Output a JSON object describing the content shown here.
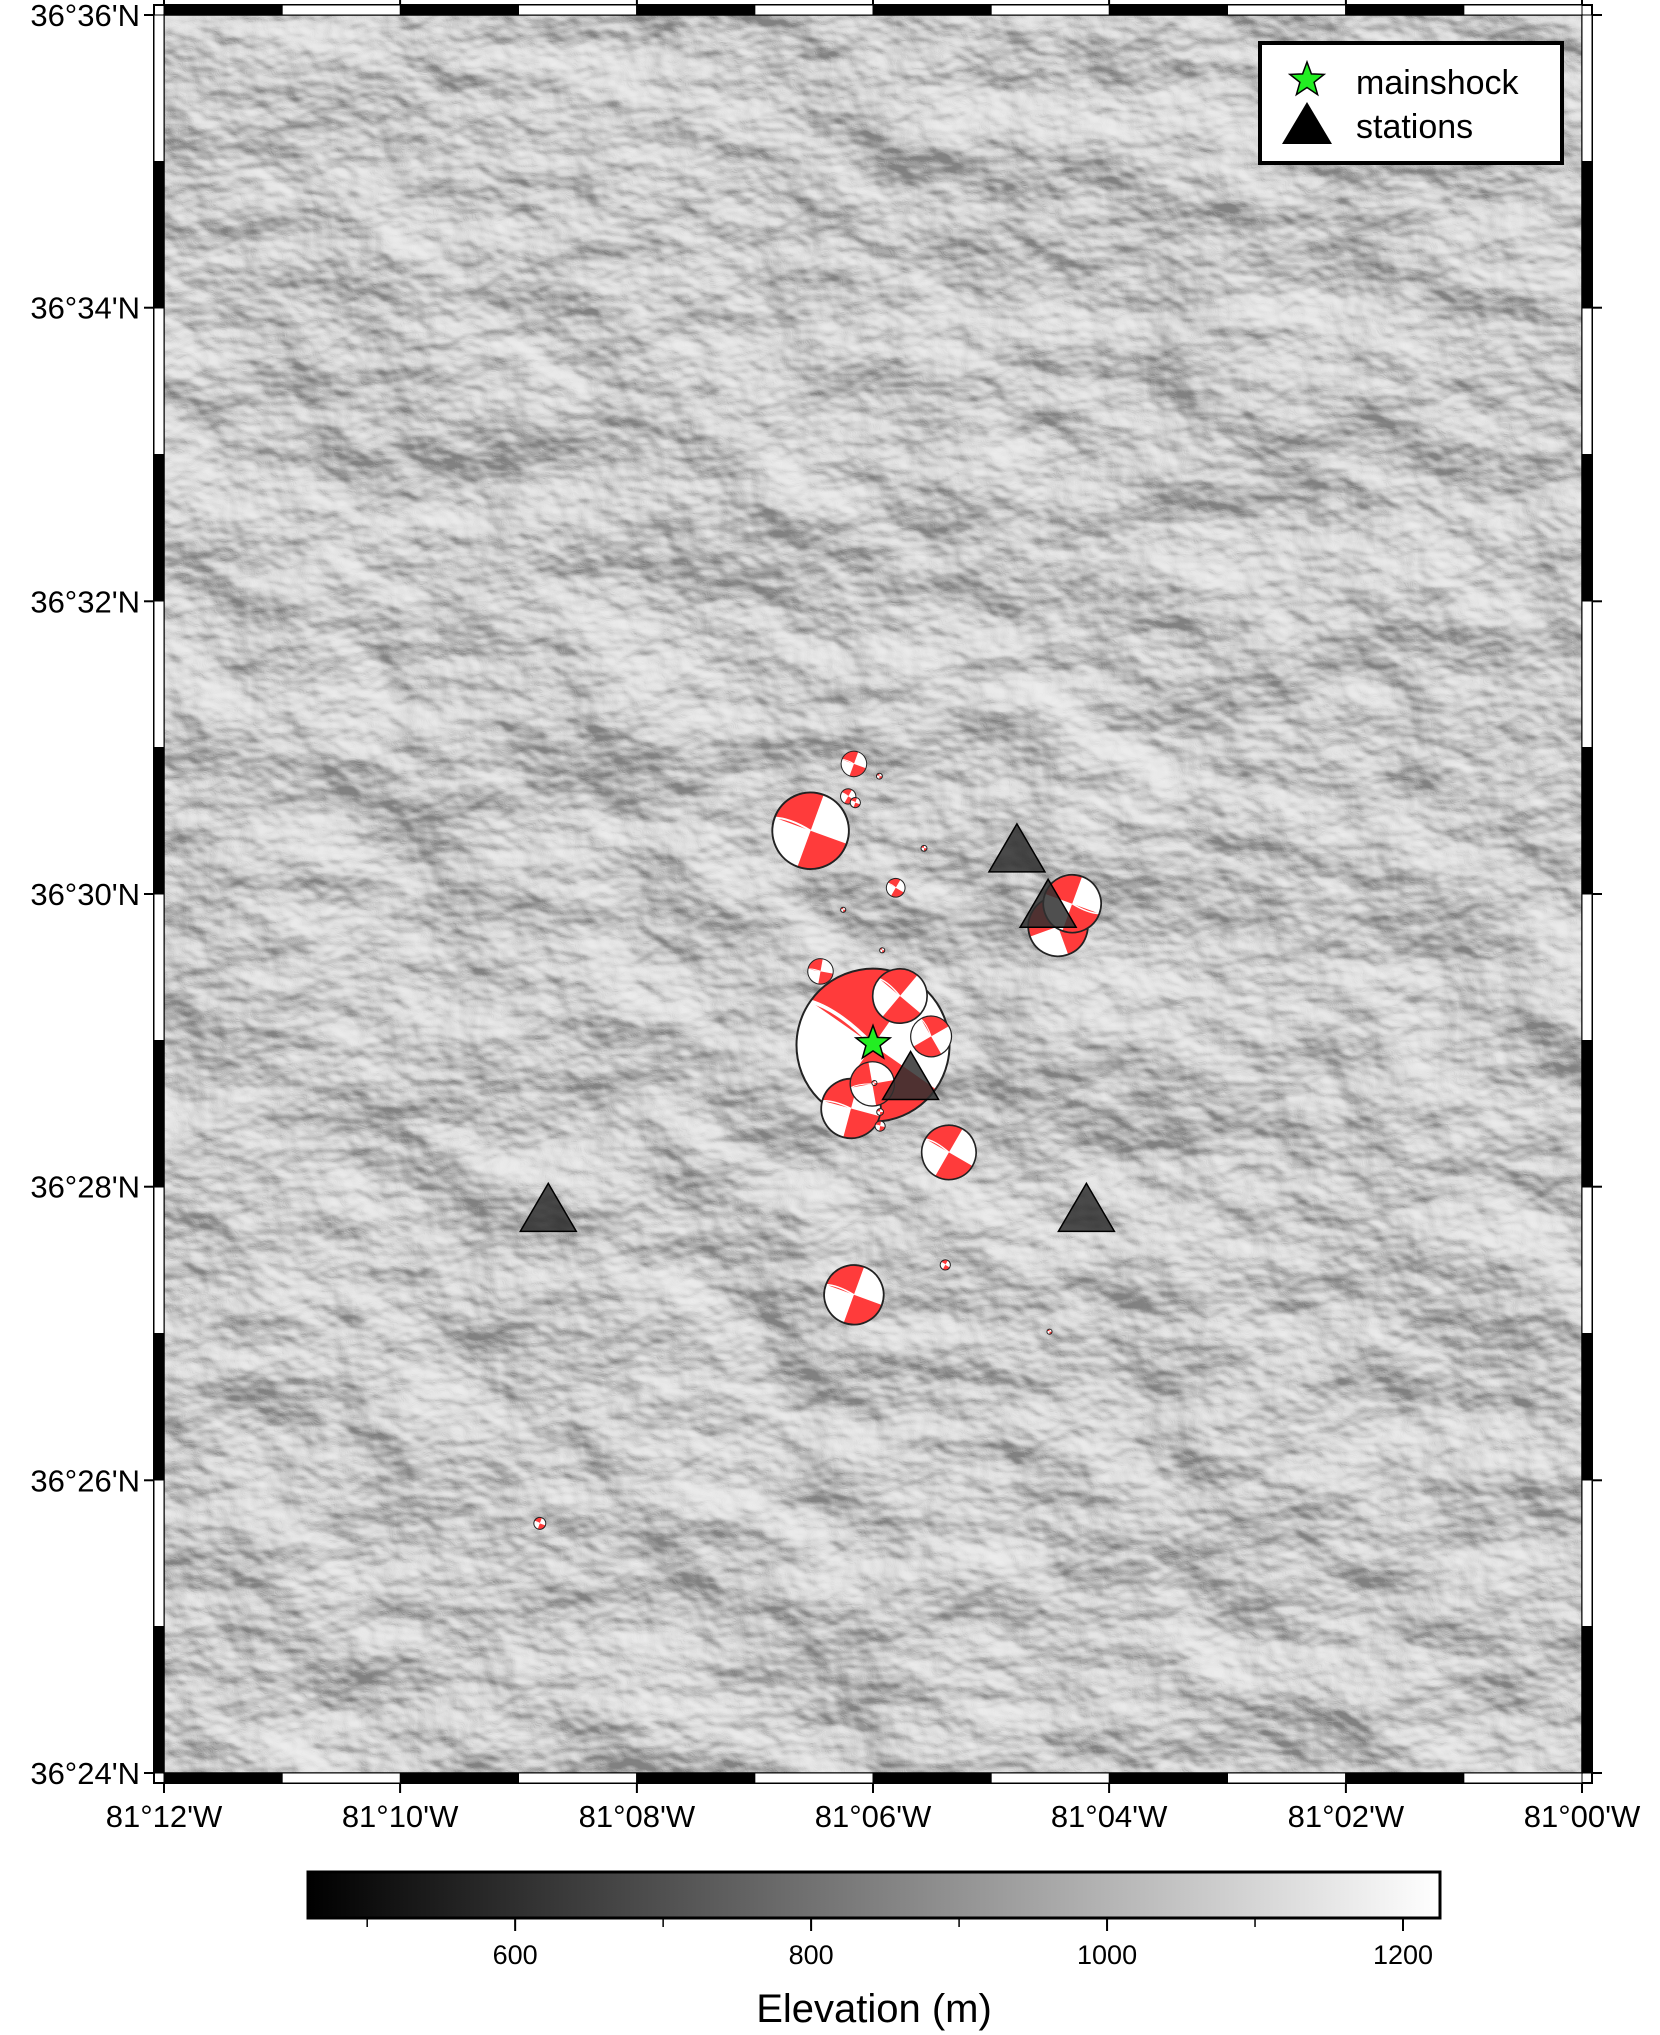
{
  "map": {
    "lon_range": [
      -81.2,
      -81.0
    ],
    "lat_range": [
      36.4,
      36.6
    ],
    "colors": {
      "beach_fill": "#ff3b3b",
      "beach_white": "#ffffff",
      "station": "#303030",
      "mainshock": "#22ee22"
    }
  },
  "axes": {
    "lat_labels": [
      "36°36'N",
      "36°34'N",
      "36°32'N",
      "36°30'N",
      "36°28'N",
      "36°26'N",
      "36°24'N"
    ],
    "lat_values": [
      36.6,
      36.5667,
      36.5333,
      36.5,
      36.4667,
      36.4333,
      36.4
    ],
    "lon_labels": [
      "81°12'W",
      "81°10'W",
      "81°08'W",
      "81°06'W",
      "81°04'W",
      "81°02'W",
      "81°00'W"
    ],
    "lon_values": [
      -81.2,
      -81.1667,
      -81.1333,
      -81.1,
      -81.0667,
      -81.0333,
      -81.0
    ]
  },
  "legend": {
    "mainshock_label": "mainshock",
    "stations_label": "stations"
  },
  "colorbar": {
    "title": "Elevation (m)",
    "range": [
      460,
      1225
    ],
    "tick_values": [
      600,
      800,
      1000,
      1200
    ],
    "tick_labels": [
      "600",
      "800",
      "1000",
      "1200"
    ]
  },
  "mainshock": {
    "lon": -81.1,
    "lat": 36.483
  },
  "stations": [
    {
      "lon": -81.0797,
      "lat": 36.5047
    },
    {
      "lon": -81.0753,
      "lat": 36.4984
    },
    {
      "lon": -81.0947,
      "lat": 36.4788
    },
    {
      "lon": -81.1458,
      "lat": 36.4638
    },
    {
      "lon": -81.0699,
      "lat": 36.4638
    }
  ],
  "events": [
    {
      "lon": -81.1,
      "lat": 36.4828,
      "size": 9,
      "rot": 35
    },
    {
      "lon": -81.1088,
      "lat": 36.5072,
      "size": 4.5,
      "rot": 20
    },
    {
      "lon": -81.0719,
      "lat": 36.4989,
      "size": 3.4,
      "rot": 200
    },
    {
      "lon": -81.0739,
      "lat": 36.4963,
      "size": 3.5,
      "rot": 160
    },
    {
      "lon": -81.0962,
      "lat": 36.4884,
      "size": 3.2,
      "rot": 40
    },
    {
      "lon": -81.0918,
      "lat": 36.4838,
      "size": 2.4,
      "rot": 60
    },
    {
      "lon": -81.1031,
      "lat": 36.4756,
      "size": 3.5,
      "rot": 15
    },
    {
      "lon": -81.1001,
      "lat": 36.4784,
      "size": 2.6,
      "rot": 350
    },
    {
      "lon": -81.0893,
      "lat": 36.4706,
      "size": 3.2,
      "rot": 30
    },
    {
      "lon": -81.1027,
      "lat": 36.4544,
      "size": 3.5,
      "rot": 20
    },
    {
      "lon": -81.1074,
      "lat": 36.4912,
      "size": 1.5,
      "rot": 10
    },
    {
      "lon": -81.1027,
      "lat": 36.5148,
      "size": 1.5,
      "rot": 20
    },
    {
      "lon": -81.1035,
      "lat": 36.5111,
      "size": 0.9,
      "rot": 30
    },
    {
      "lon": -81.1025,
      "lat": 36.5104,
      "size": 0.6,
      "rot": 20
    },
    {
      "lon": -81.0991,
      "lat": 36.5134,
      "size": 0.35,
      "rot": 0
    },
    {
      "lon": -81.0928,
      "lat": 36.5052,
      "size": 0.35,
      "rot": 0
    },
    {
      "lon": -81.0968,
      "lat": 36.5007,
      "size": 1.1,
      "rot": 30
    },
    {
      "lon": -81.1042,
      "lat": 36.4982,
      "size": 0.3,
      "rot": 0
    },
    {
      "lon": -81.0987,
      "lat": 36.4936,
      "size": 0.3,
      "rot": 0
    },
    {
      "lon": -81.0998,
      "lat": 36.4785,
      "size": 0.3,
      "rot": 0
    },
    {
      "lon": -81.099,
      "lat": 36.4752,
      "size": 0.4,
      "rot": 0
    },
    {
      "lon": -81.099,
      "lat": 36.4736,
      "size": 0.6,
      "rot": 10
    },
    {
      "lon": -81.0898,
      "lat": 36.4578,
      "size": 0.6,
      "rot": 30
    },
    {
      "lon": -81.0751,
      "lat": 36.4502,
      "size": 0.3,
      "rot": 0
    },
    {
      "lon": -81.147,
      "lat": 36.4284,
      "size": 0.7,
      "rot": 20
    }
  ]
}
